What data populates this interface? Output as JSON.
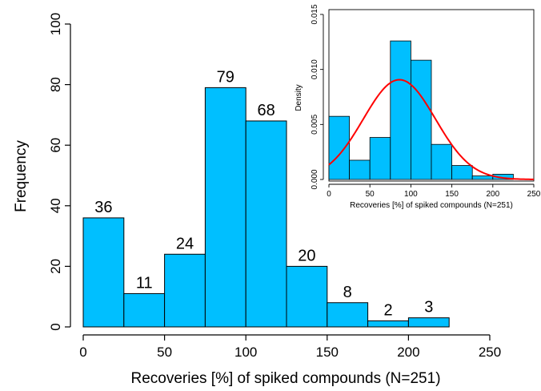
{
  "chart_data": [
    {
      "type": "bar",
      "chart": "main-histogram",
      "bin_edges": [
        0,
        25,
        50,
        75,
        100,
        125,
        150,
        175,
        200,
        225
      ],
      "values": [
        36,
        11,
        24,
        79,
        68,
        20,
        8,
        2,
        3
      ],
      "data_labels": [
        "36",
        "11",
        "24",
        "79",
        "68",
        "20",
        "8",
        "2",
        "3"
      ],
      "xlabel": "Recoveries [%] of spiked compounds (N=251)",
      "ylabel": "Frequency",
      "xlim": [
        0,
        250
      ],
      "ylim": [
        0,
        100
      ],
      "x_ticks": [
        "0",
        "50",
        "100",
        "150",
        "200",
        "250"
      ],
      "y_ticks": [
        "0",
        "20",
        "40",
        "60",
        "80",
        "100"
      ],
      "bar_color": "#00BFFF",
      "grid": false
    },
    {
      "type": "bar",
      "chart": "inset-density",
      "bin_edges": [
        0,
        25,
        50,
        75,
        100,
        125,
        150,
        175,
        200,
        225
      ],
      "values": [
        0.00574,
        0.00175,
        0.00382,
        0.01259,
        0.01084,
        0.00319,
        0.00127,
        0.00032,
        0.00048
      ],
      "overlay_curve": {
        "type": "normal",
        "mean": 86,
        "sd": 44,
        "color": "#ff0000"
      },
      "xlabel": "Recoveries [%] of spiked compounds (N=251)",
      "ylabel": "Density",
      "xlim": [
        0,
        250
      ],
      "ylim": [
        0,
        0.015
      ],
      "x_ticks": [
        "0",
        "50",
        "100",
        "150",
        "200",
        "250"
      ],
      "y_ticks": [
        "0.000",
        "0.005",
        "0.010",
        "0.015"
      ],
      "bar_color": "#00BFFF",
      "grid": false
    }
  ]
}
